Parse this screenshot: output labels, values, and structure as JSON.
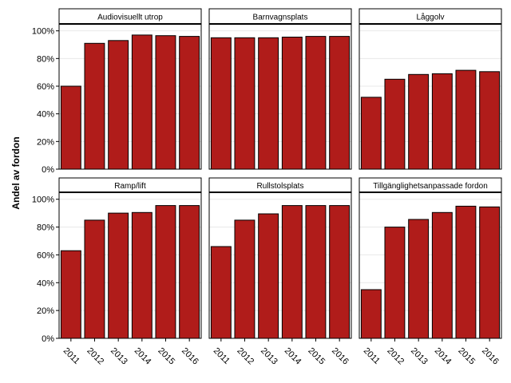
{
  "chart_data": {
    "type": "bar",
    "ylabel": "Andel av fordon",
    "ylim": [
      0,
      1.05
    ],
    "yticks": [
      0,
      0.2,
      0.4,
      0.6,
      0.8,
      1.0
    ],
    "ytick_labels": [
      "0%",
      "20%",
      "40%",
      "60%",
      "80%",
      "100%"
    ],
    "categories": [
      "2011",
      "2012",
      "2013",
      "2014",
      "2015",
      "2016"
    ],
    "bar_color": "#b01c1a",
    "grid": true,
    "panels": [
      {
        "title": "Audiovisuellt utrop",
        "values": [
          0.6,
          0.91,
          0.93,
          0.97,
          0.965,
          0.96
        ]
      },
      {
        "title": "Barnvagnsplats",
        "values": [
          0.95,
          0.95,
          0.95,
          0.955,
          0.96,
          0.96
        ]
      },
      {
        "title": "Låggolv",
        "values": [
          0.52,
          0.65,
          0.685,
          0.69,
          0.715,
          0.705
        ]
      },
      {
        "title": "Ramp/lift",
        "values": [
          0.63,
          0.85,
          0.9,
          0.905,
          0.955,
          0.955
        ]
      },
      {
        "title": "Rullstolsplats",
        "values": [
          0.66,
          0.85,
          0.895,
          0.955,
          0.955,
          0.955
        ]
      },
      {
        "title": "Tillgänglighetsanpassade fordon",
        "values": [
          0.35,
          0.8,
          0.855,
          0.905,
          0.95,
          0.945
        ]
      }
    ]
  }
}
